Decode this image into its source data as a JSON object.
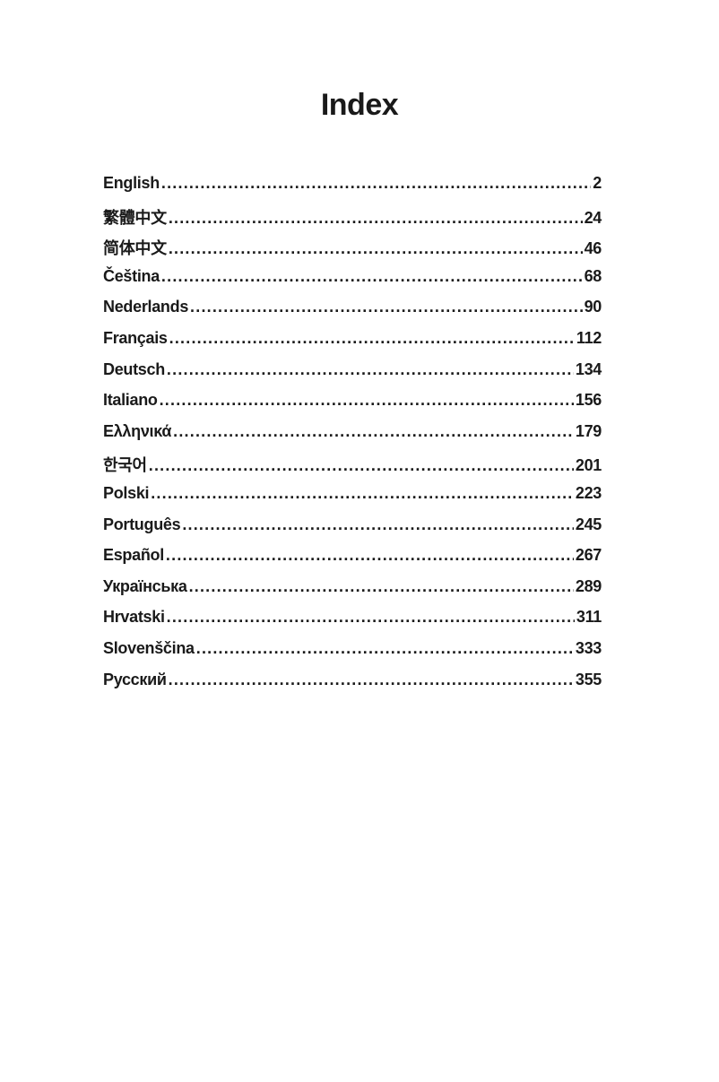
{
  "title": "Index",
  "entries": [
    {
      "label": "English",
      "page": "2"
    },
    {
      "label": "繁體中文",
      "page": "24"
    },
    {
      "label": "简体中文",
      "page": "46"
    },
    {
      "label": "Čeština",
      "page": "68"
    },
    {
      "label": "Nederlands",
      "page": "90"
    },
    {
      "label": "Français",
      "page": "112"
    },
    {
      "label": "Deutsch",
      "page": "134"
    },
    {
      "label": "Italiano",
      "page": "156"
    },
    {
      "label": "Ελληνικά",
      "page": "179"
    },
    {
      "label": "한국어",
      "page": "201"
    },
    {
      "label": "Polski",
      "page": "223"
    },
    {
      "label": "Português",
      "page": "245"
    },
    {
      "label": "Español",
      "page": "267"
    },
    {
      "label": "Українська",
      "page": "289"
    },
    {
      "label": "Hrvatski",
      "page": "311"
    },
    {
      "label": "Slovenščina",
      "page": "333"
    },
    {
      "label": "Русский",
      "page": "355"
    }
  ]
}
